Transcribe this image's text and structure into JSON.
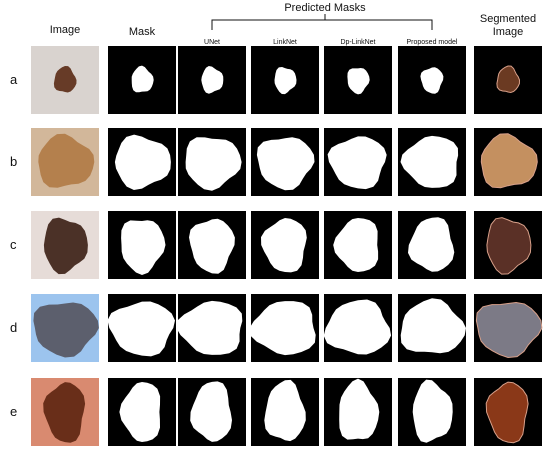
{
  "column_headers": [
    "Image",
    "Mask"
  ],
  "group_header": "Predicted Masks",
  "model_headers": [
    "UNet",
    "LinkNet",
    "Dp-LinkNet",
    "Proposed model"
  ],
  "last_header": [
    "Segmented",
    "Image"
  ],
  "row_labels": [
    "a",
    "b",
    "c",
    "d",
    "e"
  ]
}
